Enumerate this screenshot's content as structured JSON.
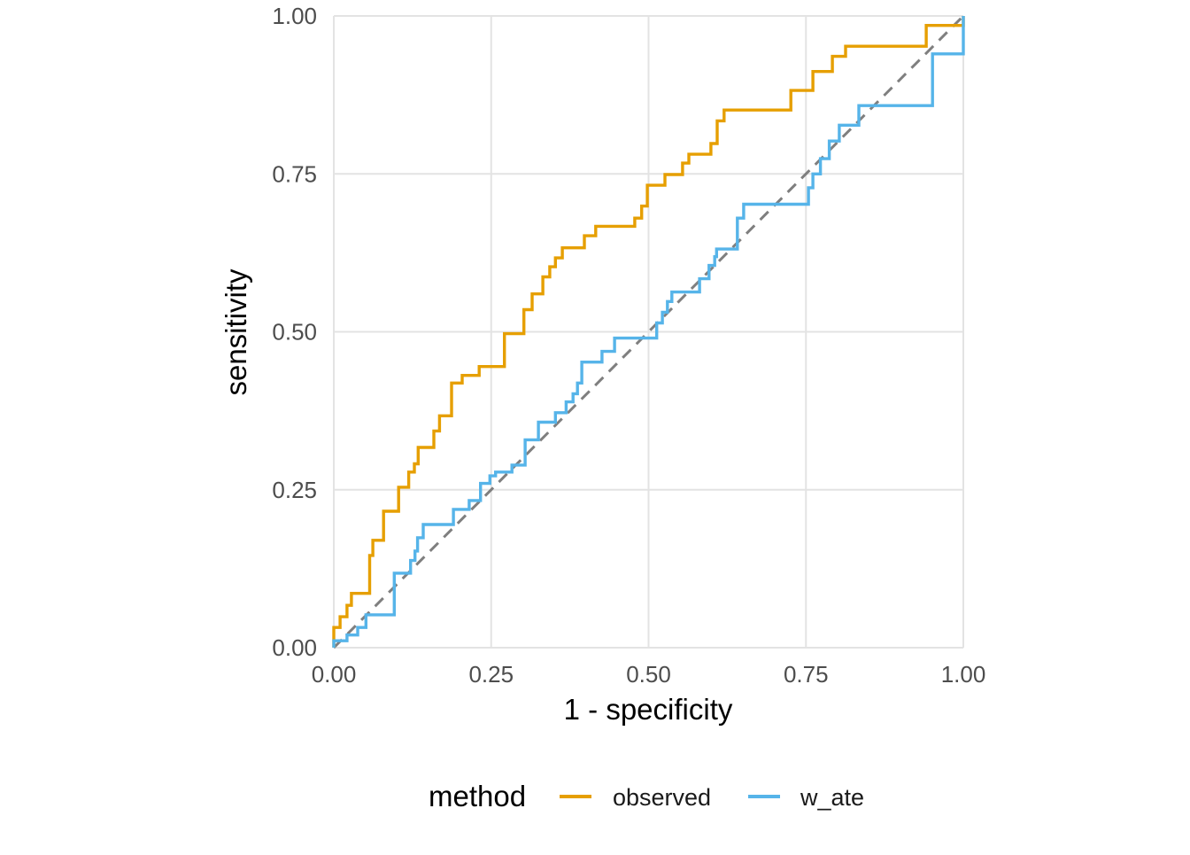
{
  "colors": {
    "background": "#ffffff",
    "gridline": "#e3e3e3",
    "reference_line": "#7f7f7f",
    "tick_text": "#4d4d4d",
    "axis_title_text": "#000000",
    "observed": "#E69F00",
    "w_ate": "#56B4E9"
  },
  "chart_data": {
    "type": "line",
    "subtype": "roc-step-curve",
    "title": "",
    "xlabel": "1 - specificity",
    "ylabel": "sensitivity",
    "xlim": [
      0,
      1
    ],
    "ylim": [
      0,
      1
    ],
    "grid": true,
    "x_ticks": [
      {
        "value": 0.0,
        "label": "0.00"
      },
      {
        "value": 0.25,
        "label": "0.25"
      },
      {
        "value": 0.5,
        "label": "0.50"
      },
      {
        "value": 0.75,
        "label": "0.75"
      },
      {
        "value": 1.0,
        "label": "1.00"
      }
    ],
    "y_ticks": [
      {
        "value": 0.0,
        "label": "0.00"
      },
      {
        "value": 0.25,
        "label": "0.25"
      },
      {
        "value": 0.5,
        "label": "0.50"
      },
      {
        "value": 0.75,
        "label": "0.75"
      },
      {
        "value": 1.0,
        "label": "1.00"
      }
    ],
    "reference_line": {
      "from": [
        0,
        0
      ],
      "to": [
        1,
        1
      ],
      "style": "dashed",
      "color": "#7f7f7f"
    },
    "legend": {
      "title": "method",
      "position": "bottom"
    },
    "series": [
      {
        "name": "observed",
        "color": "#E69F00",
        "points": [
          [
            0,
            0
          ],
          [
            0,
            0.032
          ],
          [
            0.01,
            0.032
          ],
          [
            0.01,
            0.049
          ],
          [
            0.021,
            0.049
          ],
          [
            0.021,
            0.067
          ],
          [
            0.028,
            0.067
          ],
          [
            0.028,
            0.086
          ],
          [
            0.057,
            0.086
          ],
          [
            0.057,
            0.146
          ],
          [
            0.062,
            0.146
          ],
          [
            0.062,
            0.17
          ],
          [
            0.079,
            0.17
          ],
          [
            0.079,
            0.216
          ],
          [
            0.103,
            0.216
          ],
          [
            0.103,
            0.254
          ],
          [
            0.119,
            0.254
          ],
          [
            0.119,
            0.278
          ],
          [
            0.128,
            0.278
          ],
          [
            0.128,
            0.291
          ],
          [
            0.134,
            0.291
          ],
          [
            0.134,
            0.317
          ],
          [
            0.159,
            0.317
          ],
          [
            0.159,
            0.343
          ],
          [
            0.168,
            0.343
          ],
          [
            0.168,
            0.367
          ],
          [
            0.187,
            0.367
          ],
          [
            0.187,
            0.419
          ],
          [
            0.204,
            0.419
          ],
          [
            0.204,
            0.431
          ],
          [
            0.231,
            0.431
          ],
          [
            0.231,
            0.445
          ],
          [
            0.271,
            0.445
          ],
          [
            0.271,
            0.497
          ],
          [
            0.302,
            0.497
          ],
          [
            0.302,
            0.535
          ],
          [
            0.315,
            0.535
          ],
          [
            0.315,
            0.56
          ],
          [
            0.332,
            0.56
          ],
          [
            0.332,
            0.587
          ],
          [
            0.343,
            0.587
          ],
          [
            0.343,
            0.603
          ],
          [
            0.352,
            0.603
          ],
          [
            0.352,
            0.617
          ],
          [
            0.363,
            0.617
          ],
          [
            0.363,
            0.633
          ],
          [
            0.398,
            0.633
          ],
          [
            0.398,
            0.652
          ],
          [
            0.416,
            0.652
          ],
          [
            0.416,
            0.667
          ],
          [
            0.478,
            0.667
          ],
          [
            0.478,
            0.68
          ],
          [
            0.489,
            0.68
          ],
          [
            0.489,
            0.699
          ],
          [
            0.498,
            0.699
          ],
          [
            0.498,
            0.732
          ],
          [
            0.526,
            0.732
          ],
          [
            0.526,
            0.749
          ],
          [
            0.554,
            0.749
          ],
          [
            0.554,
            0.767
          ],
          [
            0.564,
            0.767
          ],
          [
            0.564,
            0.781
          ],
          [
            0.599,
            0.781
          ],
          [
            0.599,
            0.798
          ],
          [
            0.609,
            0.798
          ],
          [
            0.609,
            0.834
          ],
          [
            0.62,
            0.834
          ],
          [
            0.62,
            0.851
          ],
          [
            0.726,
            0.851
          ],
          [
            0.726,
            0.882
          ],
          [
            0.761,
            0.882
          ],
          [
            0.761,
            0.912
          ],
          [
            0.792,
            0.912
          ],
          [
            0.792,
            0.936
          ],
          [
            0.813,
            0.936
          ],
          [
            0.813,
            0.952
          ],
          [
            0.941,
            0.952
          ],
          [
            0.941,
            0.985
          ],
          [
            1,
            0.985
          ],
          [
            1,
            1
          ]
        ]
      },
      {
        "name": "w_ate",
        "color": "#56B4E9",
        "points": [
          [
            0,
            0
          ],
          [
            0,
            0.011
          ],
          [
            0.021,
            0.011
          ],
          [
            0.021,
            0.02
          ],
          [
            0.038,
            0.02
          ],
          [
            0.038,
            0.032
          ],
          [
            0.051,
            0.032
          ],
          [
            0.051,
            0.052
          ],
          [
            0.096,
            0.052
          ],
          [
            0.096,
            0.118
          ],
          [
            0.122,
            0.118
          ],
          [
            0.122,
            0.138
          ],
          [
            0.129,
            0.138
          ],
          [
            0.129,
            0.153
          ],
          [
            0.133,
            0.153
          ],
          [
            0.133,
            0.174
          ],
          [
            0.142,
            0.174
          ],
          [
            0.142,
            0.195
          ],
          [
            0.19,
            0.195
          ],
          [
            0.19,
            0.219
          ],
          [
            0.215,
            0.219
          ],
          [
            0.215,
            0.233
          ],
          [
            0.233,
            0.233
          ],
          [
            0.233,
            0.26
          ],
          [
            0.248,
            0.26
          ],
          [
            0.248,
            0.272
          ],
          [
            0.257,
            0.272
          ],
          [
            0.257,
            0.278
          ],
          [
            0.283,
            0.278
          ],
          [
            0.283,
            0.289
          ],
          [
            0.304,
            0.289
          ],
          [
            0.304,
            0.329
          ],
          [
            0.325,
            0.329
          ],
          [
            0.325,
            0.357
          ],
          [
            0.352,
            0.357
          ],
          [
            0.352,
            0.372
          ],
          [
            0.369,
            0.372
          ],
          [
            0.369,
            0.389
          ],
          [
            0.38,
            0.389
          ],
          [
            0.38,
            0.402
          ],
          [
            0.387,
            0.402
          ],
          [
            0.387,
            0.419
          ],
          [
            0.394,
            0.419
          ],
          [
            0.394,
            0.452
          ],
          [
            0.426,
            0.452
          ],
          [
            0.426,
            0.469
          ],
          [
            0.446,
            0.469
          ],
          [
            0.446,
            0.49
          ],
          [
            0.513,
            0.49
          ],
          [
            0.513,
            0.514
          ],
          [
            0.522,
            0.514
          ],
          [
            0.522,
            0.531
          ],
          [
            0.53,
            0.531
          ],
          [
            0.53,
            0.548
          ],
          [
            0.537,
            0.548
          ],
          [
            0.537,
            0.563
          ],
          [
            0.581,
            0.563
          ],
          [
            0.581,
            0.584
          ],
          [
            0.596,
            0.584
          ],
          [
            0.596,
            0.605
          ],
          [
            0.605,
            0.605
          ],
          [
            0.605,
            0.619
          ],
          [
            0.608,
            0.619
          ],
          [
            0.608,
            0.631
          ],
          [
            0.641,
            0.631
          ],
          [
            0.641,
            0.68
          ],
          [
            0.651,
            0.68
          ],
          [
            0.651,
            0.702
          ],
          [
            0.754,
            0.702
          ],
          [
            0.754,
            0.728
          ],
          [
            0.761,
            0.728
          ],
          [
            0.761,
            0.75
          ],
          [
            0.773,
            0.75
          ],
          [
            0.773,
            0.774
          ],
          [
            0.787,
            0.774
          ],
          [
            0.787,
            0.802
          ],
          [
            0.803,
            0.802
          ],
          [
            0.803,
            0.827
          ],
          [
            0.834,
            0.827
          ],
          [
            0.834,
            0.858
          ],
          [
            0.951,
            0.858
          ],
          [
            0.951,
            0.94
          ],
          [
            1,
            0.94
          ],
          [
            1,
            1
          ]
        ]
      }
    ]
  }
}
